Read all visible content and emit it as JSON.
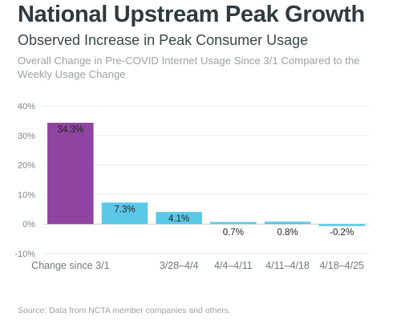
{
  "header": {
    "title": "National Upstream Peak Growth",
    "subtitle": "Observed Increase in Peak Consumer Usage",
    "description": "Overall Change in Pre-COVID Internet Usage Since 3/1 Compared to the Weekly Usage Change"
  },
  "footer": {
    "source": "Source: Data from NCTA member companies and others."
  },
  "chart_data": {
    "type": "bar",
    "categories": [
      "Change since 3/1",
      "",
      "3/28–4/4",
      "4/4–4/11",
      "4/11–4/18",
      "4/18–4/25"
    ],
    "values": [
      34.3,
      7.3,
      4.1,
      0.7,
      0.8,
      -0.2
    ],
    "data_labels": [
      "34.3%",
      "7.3%",
      "4.1%",
      "0.7%",
      "0.8%",
      "-0.2%"
    ],
    "bar_colors": [
      "#8e44a0",
      "#5bc8e8",
      "#5bc8e8",
      "#5bc8e8",
      "#5bc8e8",
      "#5bc8e8"
    ],
    "yticks": [
      -10,
      0,
      10,
      20,
      30,
      40
    ],
    "ytick_labels": [
      "-10%",
      "0%",
      "10%",
      "20%",
      "30%",
      "40%"
    ],
    "ylim": [
      -10,
      40
    ],
    "grid": true,
    "title": "National Upstream Peak Growth",
    "xlabel": "",
    "ylabel": ""
  }
}
